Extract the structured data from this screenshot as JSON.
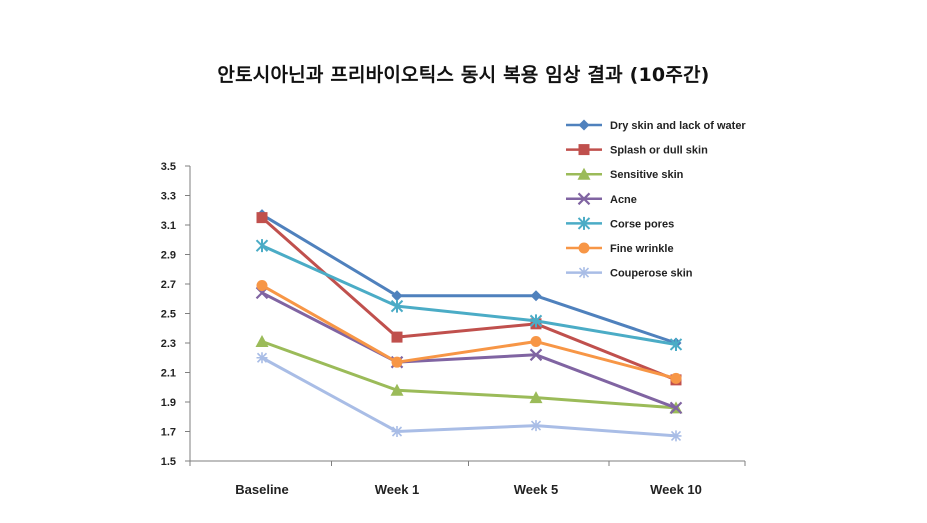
{
  "page": {
    "title": "안토시아닌과 프리바이오틱스 동시 복용 임상 결과 (10주간)"
  },
  "chart_data": {
    "type": "line",
    "title": "안토시아닌과 프리바이오틱스 동시 복용 임상 결과 (10주간)",
    "categories": [
      "Baseline",
      "Week 1",
      "Week 5",
      "Week 10"
    ],
    "ylim": [
      1.5,
      3.5
    ],
    "yticks": [
      "3.5",
      "3.3",
      "3.1",
      "2.9",
      "2.7",
      "2.5",
      "2.3",
      "2.1",
      "1.9",
      "1.7",
      "1.5"
    ],
    "grid": false,
    "legend_position": "top-right",
    "series": [
      {
        "name": "Dry skin and lack of water",
        "color": "#4f81bd",
        "marker": "diamond",
        "values": [
          3.17,
          2.62,
          2.62,
          2.3
        ]
      },
      {
        "name": "Splash or dull skin",
        "color": "#c0504d",
        "marker": "square",
        "values": [
          3.15,
          2.34,
          2.43,
          2.05
        ]
      },
      {
        "name": "Sensitive skin",
        "color": "#9bbb59",
        "marker": "triangle",
        "values": [
          2.31,
          1.98,
          1.93,
          1.86
        ]
      },
      {
        "name": "Acne",
        "color": "#8064a2",
        "marker": "x",
        "values": [
          2.64,
          2.17,
          2.22,
          1.86
        ]
      },
      {
        "name": "Corse pores",
        "color": "#4bacc6",
        "marker": "star",
        "values": [
          2.96,
          2.55,
          2.45,
          2.29
        ]
      },
      {
        "name": "Fine wrinkle",
        "color": "#f79646",
        "marker": "circle",
        "values": [
          2.69,
          2.17,
          2.31,
          2.06
        ]
      },
      {
        "name": "Couperose skin",
        "color": "#a9bde6",
        "marker": "plus",
        "values": [
          2.2,
          1.7,
          1.74,
          1.67
        ]
      }
    ]
  }
}
